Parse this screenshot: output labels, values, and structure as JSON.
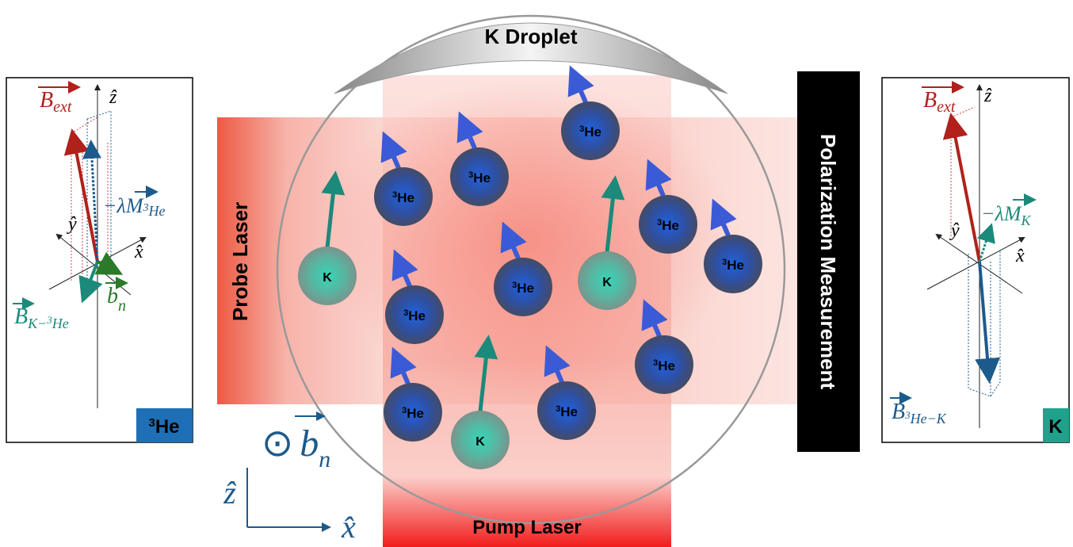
{
  "droplet_label": "K Droplet",
  "probe_laser": "Probe Laser",
  "pump_laser": "Pump Laser",
  "measurement": "Polarization Measurement",
  "atoms": [
    {
      "sup": "3",
      "text": "He"
    },
    {
      "sup": "3",
      "text": "He"
    },
    {
      "sup": "3",
      "text": "He"
    },
    {
      "sup": "3",
      "text": "He"
    },
    {
      "sup": "3",
      "text": "He"
    },
    {
      "sup": "3",
      "text": "He"
    },
    {
      "sup": "3",
      "text": "He"
    },
    {
      "sup": "3",
      "text": "He"
    },
    {
      "sup": "3",
      "text": "He"
    },
    {
      "sup": "3",
      "text": "He"
    },
    {
      "text": "K"
    },
    {
      "text": "K"
    },
    {
      "text": "K"
    }
  ],
  "frame_axes": {
    "normal": {
      "symbol": "⊙",
      "vector": "b",
      "sub": "n"
    },
    "z": "ẑ",
    "x": "x̂"
  },
  "he_panel": {
    "badge": {
      "sup": "3",
      "text": "He"
    },
    "z": "ẑ",
    "y": "ŷ",
    "x": "x̂",
    "b_ext": {
      "vector": "B",
      "sub": "ext"
    },
    "magnetization": {
      "prefix": "−λ",
      "vector": "M",
      "sub_sup": "3",
      "sub": "He"
    },
    "b_k_he": {
      "vector": "B",
      "sub": "K−",
      "sub_sup": "3",
      "sub_end": "He"
    },
    "b_n": {
      "vector": "b",
      "sub": "n"
    }
  },
  "k_panel": {
    "badge": {
      "text": "K"
    },
    "z": "ẑ",
    "y": "ŷ",
    "x": "x̂",
    "b_ext": {
      "vector": "B",
      "sub": "ext"
    },
    "magnetization": {
      "prefix": "−λ",
      "vector": "M",
      "sub": "K"
    },
    "b_he_k": {
      "vector": "B",
      "sub_sup": "3",
      "sub": "He−K"
    }
  }
}
